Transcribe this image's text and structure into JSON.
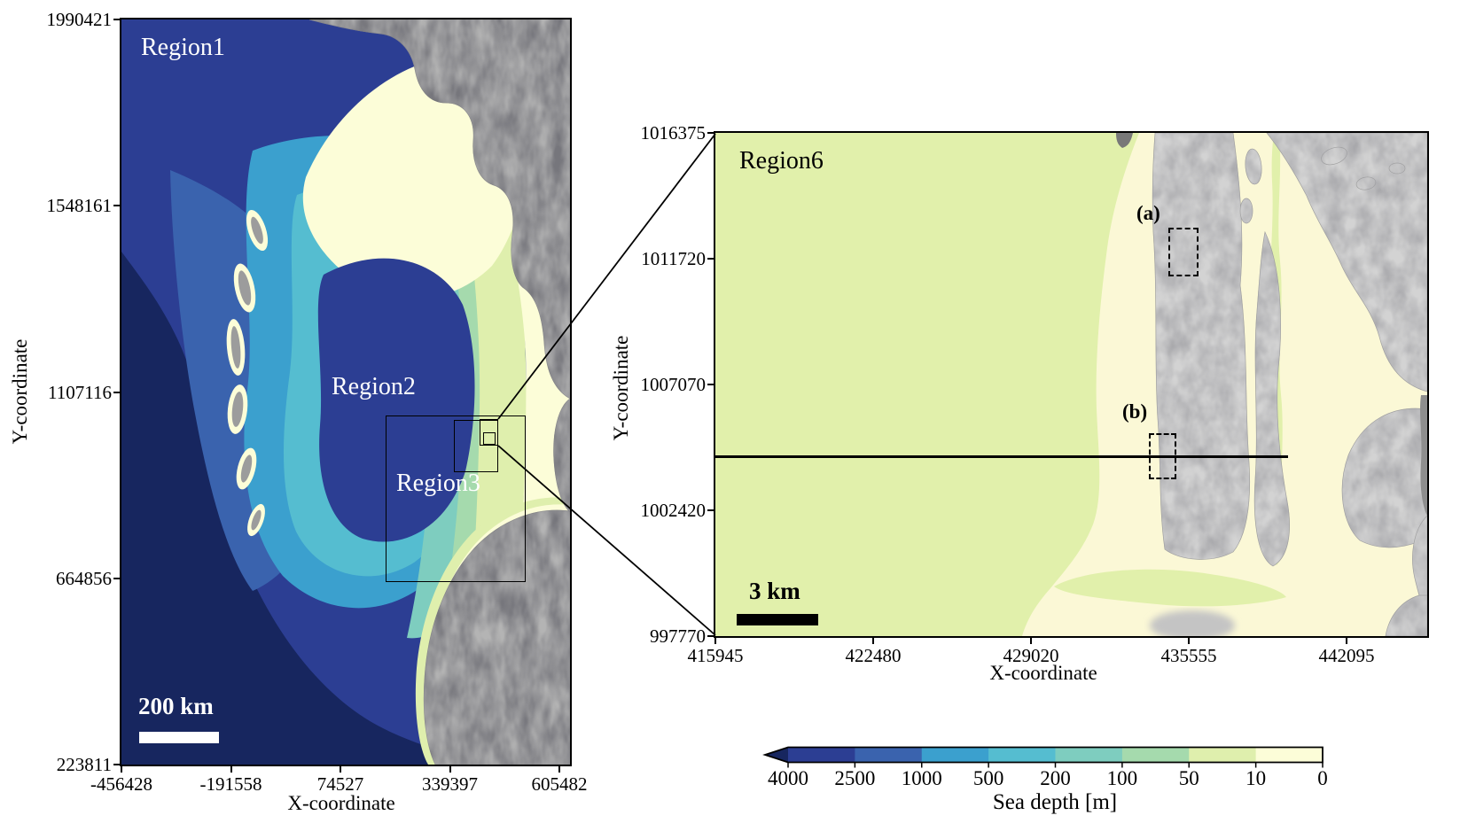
{
  "left_map": {
    "labels": {
      "region1": "Region1",
      "region2": "Region2",
      "region3": "Region3"
    },
    "x_axis": {
      "label": "X-coordinate",
      "ticks": [
        "-456428",
        "-191558",
        "74527",
        "339397",
        "605482"
      ]
    },
    "y_axis": {
      "label": "Y-coordinate",
      "ticks": [
        "1990421",
        "1548161",
        "1107116",
        "664856",
        "223811"
      ]
    },
    "scale_bar": {
      "label": "200 km"
    }
  },
  "right_map": {
    "labels": {
      "region6": "Region6",
      "box_a": "(a)",
      "box_b": "(b)"
    },
    "x_axis": {
      "label": "X-coordinate",
      "ticks": [
        "415945",
        "422480",
        "429020",
        "435555",
        "442095"
      ]
    },
    "y_axis": {
      "label": "Y-coordinate",
      "ticks": [
        "1016375",
        "1011720",
        "1007070",
        "1002420",
        "997770"
      ]
    },
    "scale_bar": {
      "label": "3 km"
    }
  },
  "colorbar": {
    "label": "Sea depth [m]",
    "tick_labels": [
      "4000",
      "2500",
      "1000",
      "500",
      "200",
      "100",
      "50",
      "10",
      "0"
    ],
    "arrow_color": "#17265f",
    "segment_colors": [
      "#2c3e93",
      "#3a63ae",
      "#3ba0ce",
      "#55bdd0",
      "#7ecdbf",
      "#a5daad",
      "#dfefad",
      "#fcfdd8"
    ]
  },
  "palette": {
    "deep_navy": "#17265f",
    "royal_blue": "#2c3e93",
    "mid_blue": "#3a63ae",
    "light_blue": "#3ba0ce",
    "cyan": "#55bdd0",
    "teal_green": "#7ecdbf",
    "green": "#a5daad",
    "yellow_green": "#dfefad",
    "pale_cream": "#fcfdd8",
    "rm_base": "#e1f0ab",
    "rm_shallow": "#fbf8d6",
    "land_left": "#b4b4b4",
    "land_right": "#d3d3d3",
    "land_dark": "#8e8e8e",
    "land_darker": "#787878",
    "smudge_gray": "#c4c4c4",
    "line_black": "#000000",
    "scale_white": "#ffffff"
  }
}
